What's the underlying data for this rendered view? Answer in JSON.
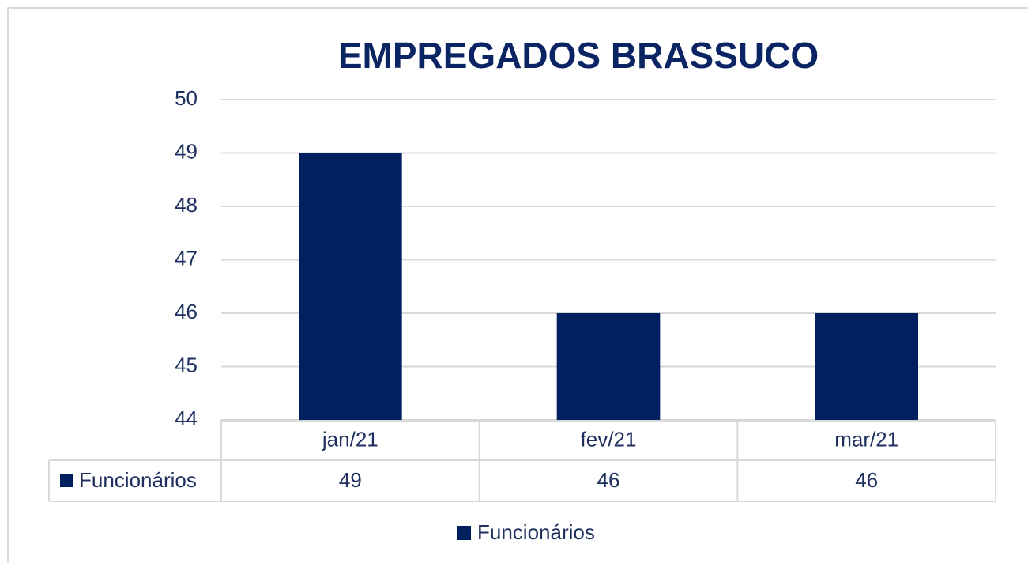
{
  "chart_data": {
    "type": "bar",
    "title": "EMPREGADOS BRASSUCO",
    "categories": [
      "jan/21",
      "fev/21",
      "mar/21"
    ],
    "series": [
      {
        "name": "Funcionários",
        "color": "#002060",
        "values": [
          49,
          46,
          46
        ]
      }
    ],
    "ylim": [
      44,
      50
    ],
    "yticks": [
      44,
      45,
      46,
      47,
      48,
      49,
      50
    ],
    "grid": true,
    "legend": "bottom",
    "data_table": true
  }
}
